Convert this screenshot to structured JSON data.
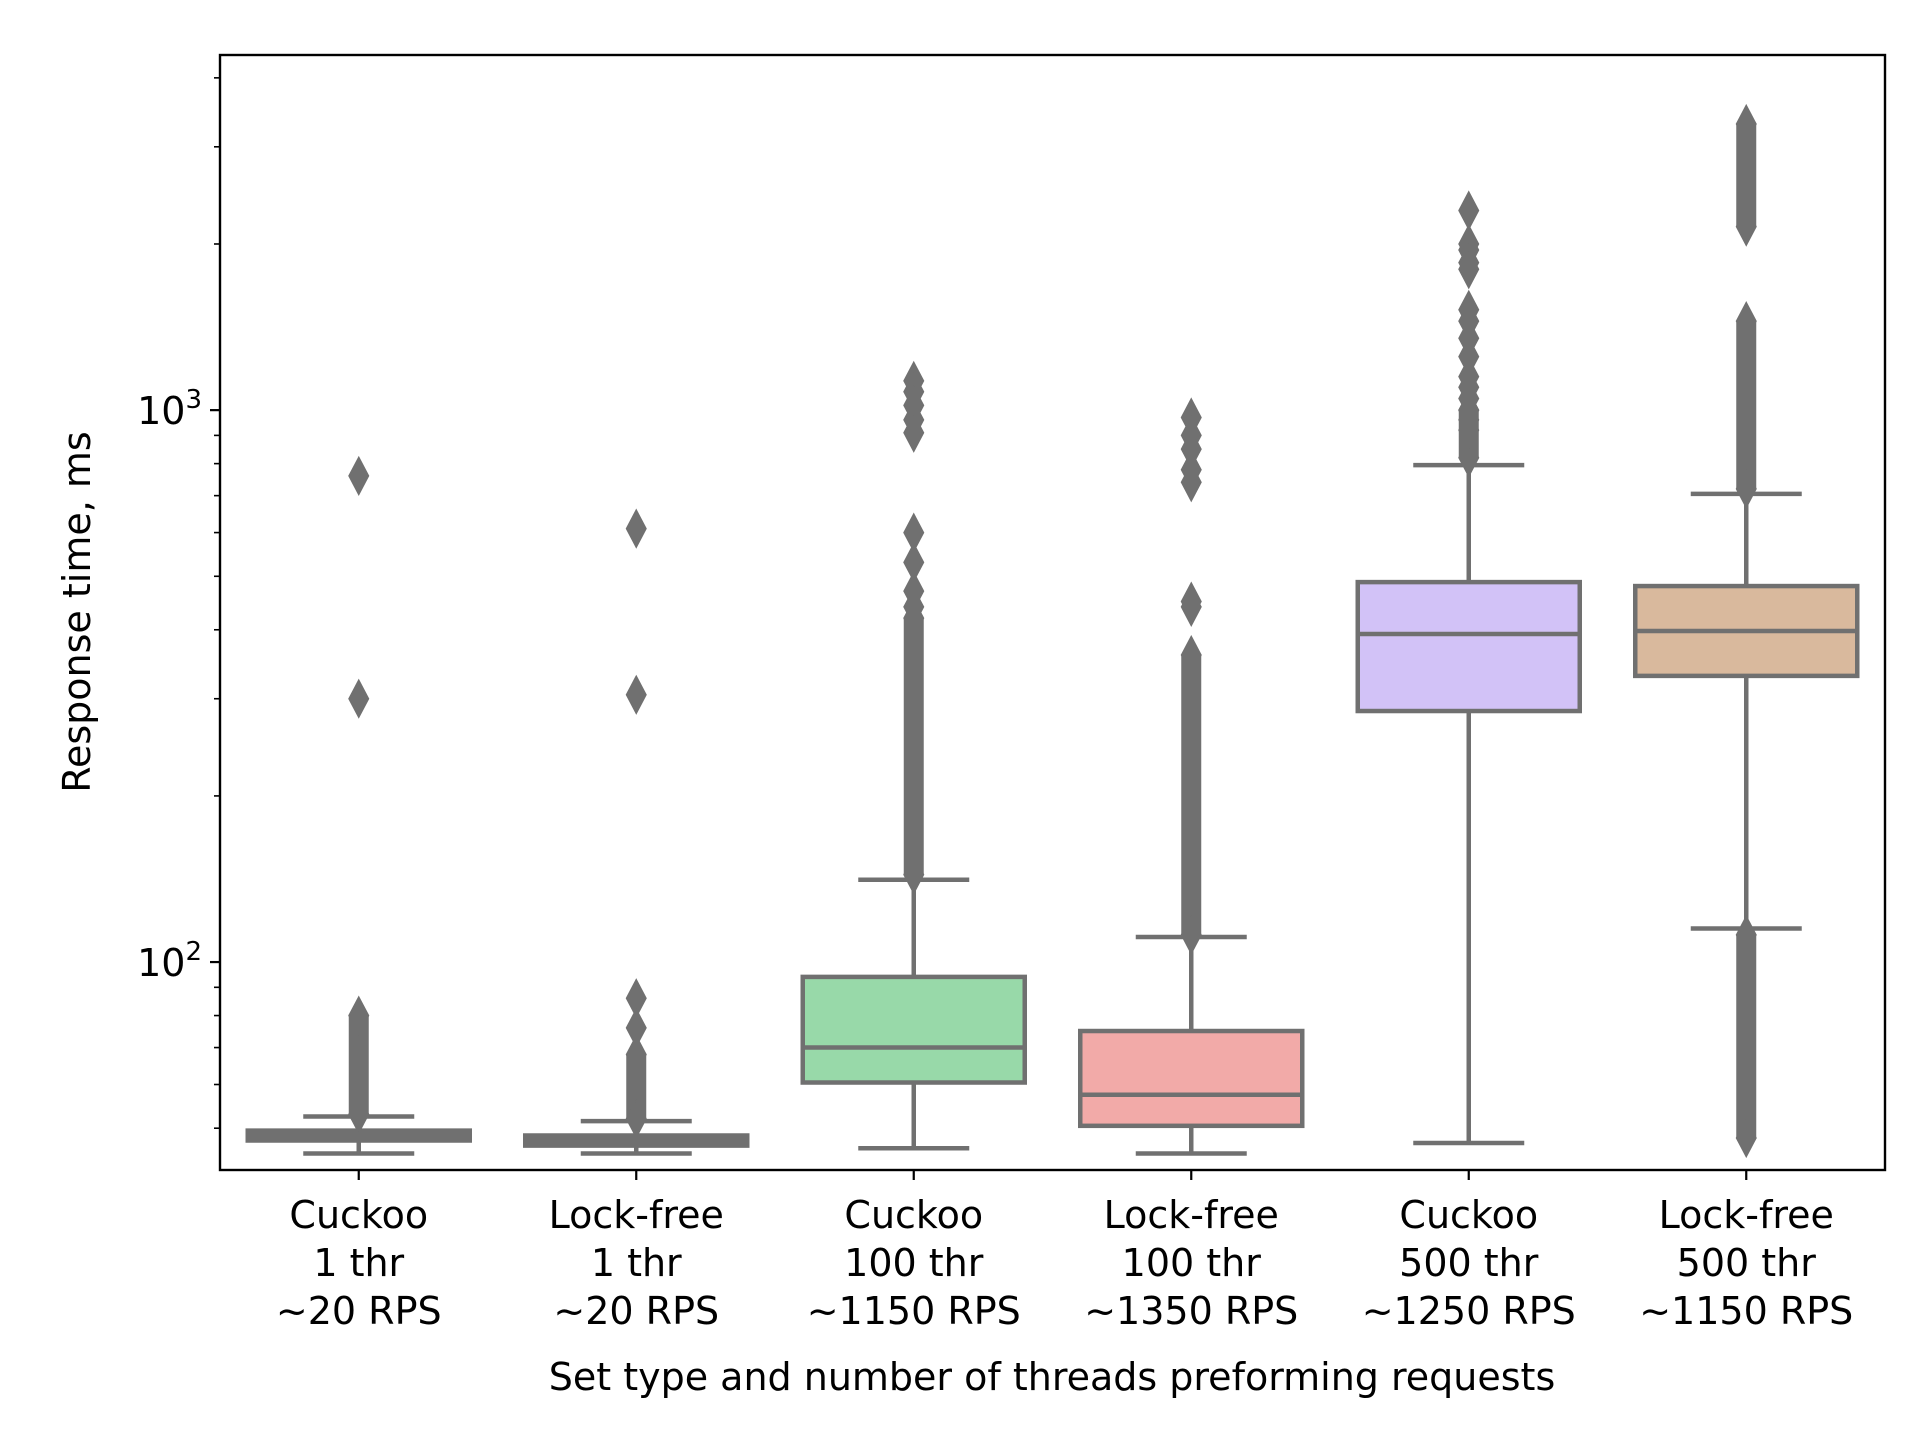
{
  "chart_data": {
    "type": "box",
    "xlabel": "Set type and number of threads preforming requests",
    "ylabel": "Response time, ms",
    "yscale": "log",
    "ylim": [
      42,
      4400
    ],
    "y_major_ticks": [
      {
        "value": 100,
        "base": "10",
        "exp": "2"
      },
      {
        "value": 1000,
        "base": "10",
        "exp": "3"
      }
    ],
    "grid": false,
    "legend": "none",
    "categories": [
      {
        "lines": [
          "Cuckoo",
          "1 thr",
          "~20 RPS"
        ]
      },
      {
        "lines": [
          "Lock-free",
          "1 thr",
          "~20 RPS"
        ]
      },
      {
        "lines": [
          "Cuckoo",
          "100 thr",
          "~1150 RPS"
        ]
      },
      {
        "lines": [
          "Lock-free",
          "100 thr",
          "~1350 RPS"
        ]
      },
      {
        "lines": [
          "Cuckoo",
          "500 thr",
          "~1250 RPS"
        ]
      },
      {
        "lines": [
          "Lock-free",
          "500 thr",
          "~1150 RPS"
        ]
      }
    ],
    "box_edge_color": "#707070",
    "series": [
      {
        "color": "#707070",
        "whisker_low": 45,
        "q1": 47.5,
        "median": 48.3,
        "q3": 49.5,
        "whisker_high": 52.5,
        "outliers": [
          760,
          300
        ],
        "outlier_band": [
          53,
          80
        ]
      },
      {
        "color": "#707070",
        "whisker_low": 45,
        "q1": 46.5,
        "median": 47.3,
        "q3": 48.5,
        "whisker_high": 51.5,
        "outliers": [
          610,
          305,
          86,
          76
        ],
        "outlier_band": [
          52,
          68
        ]
      },
      {
        "color": "#98d9a9",
        "whisker_low": 46,
        "q1": 60.5,
        "median": 70,
        "q3": 94,
        "whisker_high": 141,
        "outliers": [
          1130,
          1080,
          1020,
          960,
          910,
          600,
          530,
          470,
          440
        ],
        "outlier_band": [
          144,
          420
        ]
      },
      {
        "color": "#f2aaa8",
        "whisker_low": 45,
        "q1": 50.5,
        "median": 57.5,
        "q3": 75,
        "whisker_high": 111,
        "outliers": [
          970,
          900,
          850,
          780,
          740,
          450,
          440
        ],
        "outlier_band": [
          112,
          360
        ]
      },
      {
        "color": "#d2c2f7",
        "whisker_low": 47,
        "q1": 285,
        "median": 393,
        "q3": 488,
        "whisker_high": 795,
        "outliers": [
          2300,
          2000,
          1950,
          1850,
          1800,
          1520,
          1450,
          1350,
          1250,
          1150,
          1100,
          1050,
          1000,
          960,
          920
        ],
        "outlier_band": [
          820,
          1000
        ]
      },
      {
        "color": "#d9b99d",
        "whisker_low": 115,
        "q1": 330,
        "median": 398,
        "q3": 480,
        "whisker_high": 705,
        "outliers_high_band": [
          720,
          1450
        ],
        "outliers_top_band": [
          2150,
          3300
        ],
        "outlier_band": [
          48,
          112
        ]
      }
    ]
  }
}
